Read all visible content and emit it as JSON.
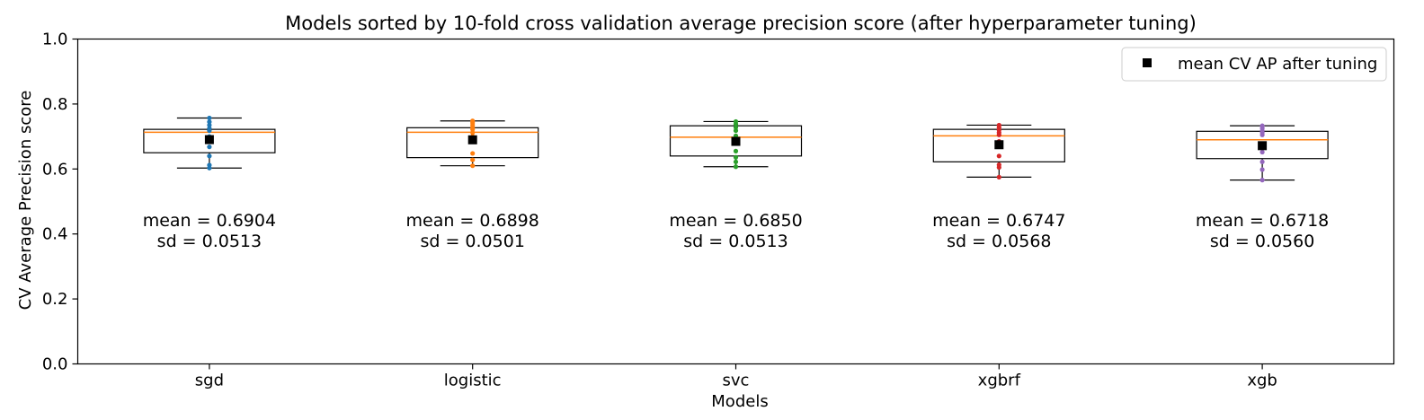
{
  "chart_data": {
    "type": "box",
    "title": "Models sorted by 10-fold cross validation average precision score (after hyperparameter tuning)",
    "xlabel": "Models",
    "ylabel": "CV Average Precision score",
    "ylim": [
      0,
      1.0
    ],
    "yticks": [
      "0.0",
      "0.2",
      "0.4",
      "0.6",
      "0.8",
      "1.0"
    ],
    "legend": {
      "label": "mean CV AP after tuning",
      "placement": "top-right"
    },
    "mean_marker_color": "#000000",
    "median_color": "#ff7f0e",
    "categories": [
      "sgd",
      "logistic",
      "svc",
      "xgbrf",
      "xgb"
    ],
    "boxes": [
      {
        "name": "sgd",
        "color": "#1f77b4",
        "whisker_low": 0.603,
        "q1": 0.65,
        "median": 0.713,
        "q3": 0.722,
        "whisker_high": 0.757,
        "mean": 0.6904,
        "points": [
          0.603,
          0.612,
          0.64,
          0.668,
          0.7,
          0.718,
          0.725,
          0.735,
          0.745,
          0.757
        ],
        "mean_text": "mean = 0.6904",
        "sd_text": "sd = 0.0513"
      },
      {
        "name": "logistic",
        "color": "#ff7f0e",
        "whisker_low": 0.61,
        "q1": 0.635,
        "median": 0.713,
        "q3": 0.727,
        "whisker_high": 0.748,
        "mean": 0.6898,
        "points": [
          0.61,
          0.628,
          0.648,
          0.7,
          0.712,
          0.722,
          0.728,
          0.735,
          0.742,
          0.748
        ],
        "mean_text": "mean = 0.6898",
        "sd_text": "sd = 0.0501"
      },
      {
        "name": "svc",
        "color": "#2ca02c",
        "whisker_low": 0.607,
        "q1": 0.64,
        "median": 0.698,
        "q3": 0.733,
        "whisker_high": 0.746,
        "mean": 0.685,
        "points": [
          0.607,
          0.622,
          0.636,
          0.655,
          0.682,
          0.702,
          0.718,
          0.728,
          0.738,
          0.746
        ],
        "mean_text": "mean = 0.6850",
        "sd_text": "sd = 0.0513"
      },
      {
        "name": "xgbrf",
        "color": "#d62728",
        "whisker_low": 0.575,
        "q1": 0.622,
        "median": 0.702,
        "q3": 0.722,
        "whisker_high": 0.735,
        "mean": 0.6747,
        "points": [
          0.575,
          0.605,
          0.613,
          0.64,
          0.685,
          0.705,
          0.712,
          0.72,
          0.728,
          0.735
        ],
        "mean_text": "mean = 0.6747",
        "sd_text": "sd = 0.0568"
      },
      {
        "name": "xgb",
        "color": "#9467bd",
        "whisker_low": 0.566,
        "q1": 0.632,
        "median": 0.69,
        "q3": 0.716,
        "whisker_high": 0.733,
        "mean": 0.6718,
        "points": [
          0.566,
          0.598,
          0.622,
          0.652,
          0.67,
          0.705,
          0.712,
          0.718,
          0.726,
          0.733
        ],
        "mean_text": "mean = 0.6718",
        "sd_text": "sd = 0.0560"
      }
    ]
  }
}
